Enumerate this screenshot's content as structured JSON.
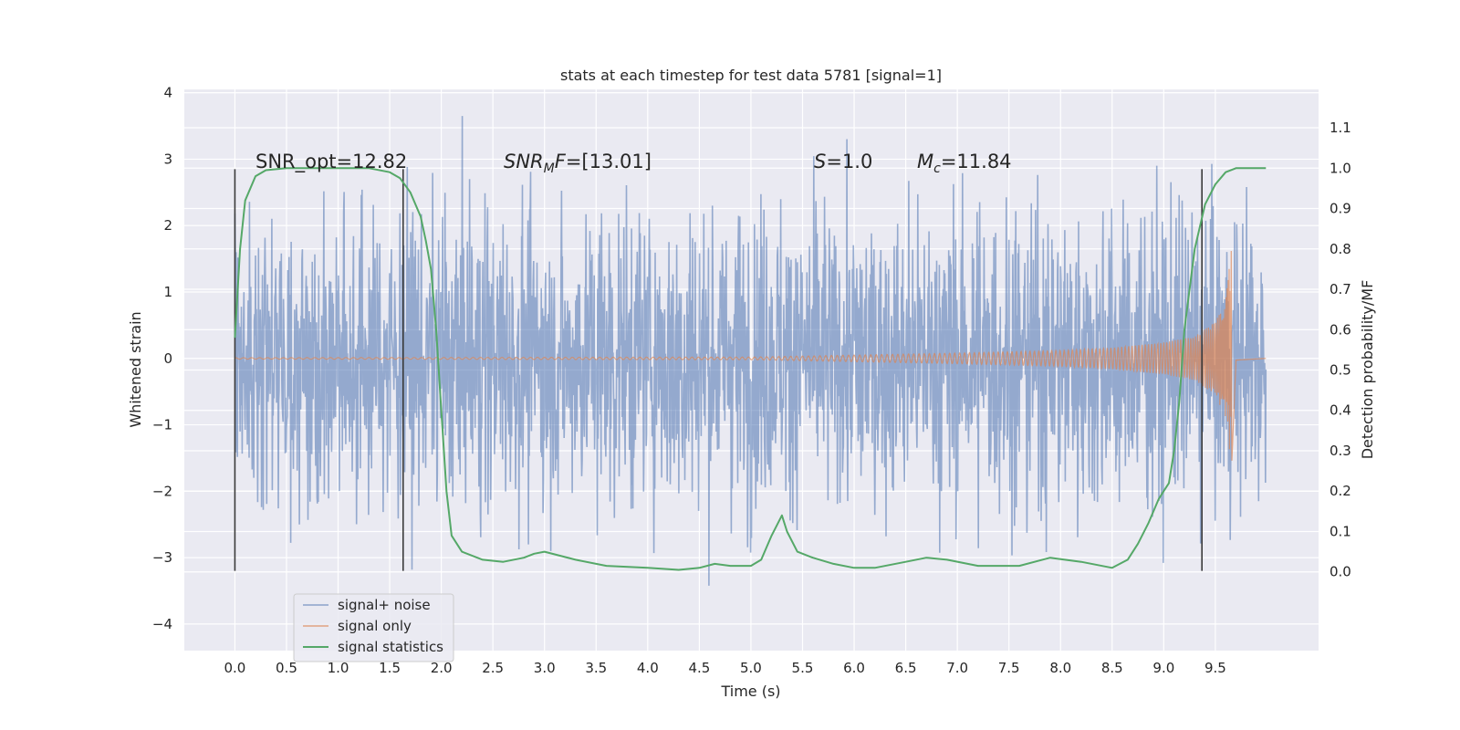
{
  "chart_data": {
    "type": "line",
    "title": "stats at each timestep for test data 5781 [signal=1]",
    "xlabel": "Time (s)",
    "ylabel": "Whitened strain",
    "y2label": "Detection probability/MF",
    "xlim": [
      -0.49,
      10.5
    ],
    "ylim": [
      -4.4,
      4.05
    ],
    "y2lim": [
      -0.195,
      1.195
    ],
    "x_ticks": [
      "0.0",
      "0.5",
      "1.0",
      "1.5",
      "2.0",
      "2.5",
      "3.0",
      "3.5",
      "4.0",
      "4.5",
      "5.0",
      "5.5",
      "6.0",
      "6.5",
      "7.0",
      "7.5",
      "8.0",
      "8.5",
      "9.0",
      "9.5"
    ],
    "y_ticks": [
      "−4",
      "−3",
      "−2",
      "−1",
      "0",
      "1",
      "2",
      "3",
      "4"
    ],
    "y2_ticks": [
      "0.0",
      "0.1",
      "0.2",
      "0.3",
      "0.4",
      "0.5",
      "0.6",
      "0.7",
      "0.8",
      "0.9",
      "1.0",
      "1.1"
    ],
    "annotations": {
      "snr_opt": "SNR_opt=12.82",
      "snr_mf_base": "SNR",
      "snr_mf_sub": "M",
      "snr_mf_rest": "F=[13.01]",
      "s_var": "S",
      "s_rest": "=1.0",
      "mc_base": "M",
      "mc_sub": "c",
      "mc_rest": "=11.84"
    },
    "vlines_x": [
      0.0,
      1.63,
      9.37
    ],
    "legend_placement": "lower-left",
    "grid": true,
    "series": [
      {
        "name": "signal+ noise",
        "color": "#4c72b0",
        "kind": "noise",
        "x_range": [
          0.0,
          9.99
        ],
        "typical_amplitude": 2.0,
        "min": -4.05,
        "max": 3.65
      },
      {
        "name": "signal only",
        "color": "#dd8452",
        "kind": "chirp",
        "merger_time": 9.66,
        "x": [
          0.0,
          5.0,
          6.0,
          7.0,
          8.0,
          8.5,
          9.0,
          9.3,
          9.5,
          9.6,
          9.66,
          9.7,
          9.99
        ],
        "envelope": [
          0.01,
          0.02,
          0.05,
          0.08,
          0.12,
          0.16,
          0.24,
          0.33,
          0.55,
          0.9,
          1.8,
          0.03,
          0.0
        ]
      },
      {
        "name": "signal statistics",
        "color": "#55a868",
        "kind": "line",
        "x": [
          0.0,
          0.05,
          0.1,
          0.2,
          0.3,
          0.5,
          0.8,
          1.0,
          1.3,
          1.5,
          1.6,
          1.7,
          1.8,
          1.85,
          1.9,
          1.95,
          2.0,
          2.05,
          2.1,
          2.2,
          2.4,
          2.6,
          2.8,
          2.9,
          3.0,
          3.3,
          3.6,
          4.0,
          4.3,
          4.5,
          4.65,
          4.8,
          5.0,
          5.1,
          5.2,
          5.3,
          5.35,
          5.45,
          5.6,
          5.8,
          6.0,
          6.2,
          6.5,
          6.7,
          6.9,
          7.2,
          7.6,
          7.9,
          8.2,
          8.5,
          8.65,
          8.75,
          8.85,
          8.95,
          9.0,
          9.05,
          9.1,
          9.15,
          9.2,
          9.3,
          9.4,
          9.5,
          9.6,
          9.7,
          9.8,
          9.9,
          9.99
        ],
        "y": [
          0.58,
          0.8,
          0.92,
          0.98,
          0.995,
          1.0,
          1.0,
          1.0,
          1.0,
          0.99,
          0.975,
          0.94,
          0.88,
          0.82,
          0.75,
          0.6,
          0.4,
          0.2,
          0.09,
          0.05,
          0.03,
          0.025,
          0.035,
          0.045,
          0.05,
          0.03,
          0.015,
          0.01,
          0.005,
          0.01,
          0.02,
          0.015,
          0.015,
          0.03,
          0.09,
          0.14,
          0.1,
          0.05,
          0.035,
          0.02,
          0.01,
          0.01,
          0.025,
          0.035,
          0.03,
          0.015,
          0.015,
          0.035,
          0.025,
          0.01,
          0.03,
          0.07,
          0.12,
          0.18,
          0.2,
          0.22,
          0.3,
          0.42,
          0.6,
          0.8,
          0.91,
          0.96,
          0.99,
          1.0,
          1.0,
          1.0,
          1.0
        ]
      }
    ]
  }
}
